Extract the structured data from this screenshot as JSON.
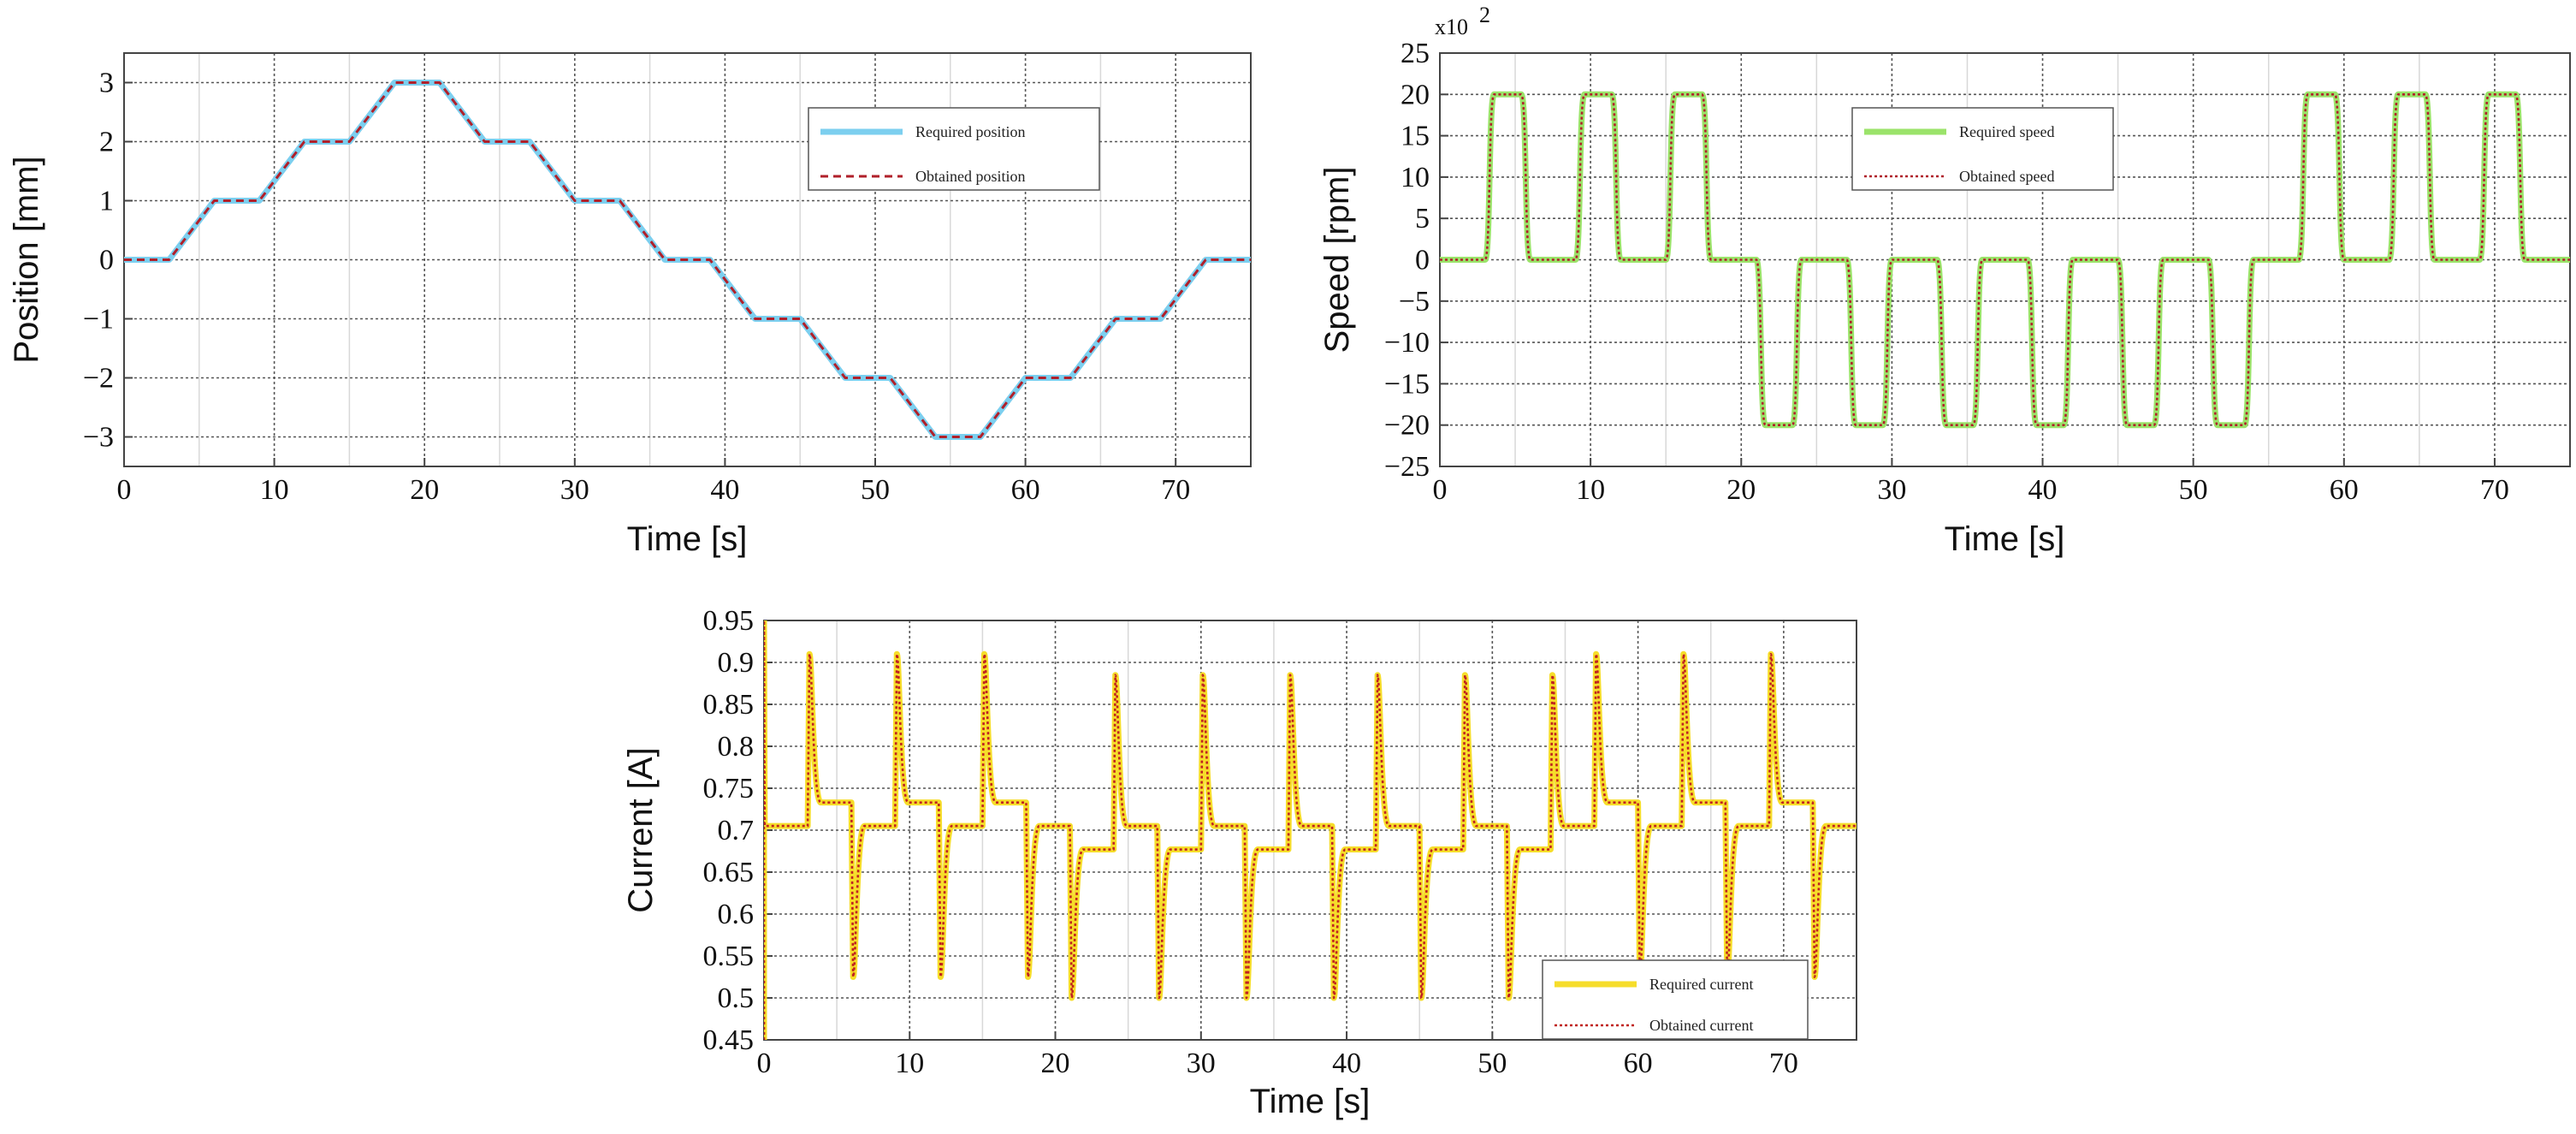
{
  "chart_data": [
    {
      "id": "position",
      "type": "line",
      "xlabel": "Time [s]",
      "ylabel": "Position [mm]",
      "xlim": [
        0,
        75
      ],
      "ylim": [
        -3.5,
        3.5
      ],
      "xticks": [
        0,
        10,
        20,
        30,
        40,
        50,
        60,
        70
      ],
      "yticks": [
        3,
        2,
        1,
        0,
        -1,
        -2,
        -3
      ],
      "ytick_labels": [
        "3",
        "2",
        "1",
        "0",
        "−1",
        "−2",
        "−3"
      ],
      "legend_position": "top-right",
      "series": [
        {
          "name": "Required position",
          "color": "#7ccfef",
          "style": "solid",
          "x": [
            0,
            3,
            6,
            9,
            12,
            15,
            18,
            21,
            24,
            27,
            30,
            33,
            36,
            39,
            42,
            45,
            48,
            51,
            54,
            57,
            60,
            63,
            66,
            69,
            72,
            75
          ],
          "y": [
            0,
            0,
            1,
            1,
            2,
            2,
            3,
            3,
            2,
            2,
            1,
            1,
            0,
            0,
            -1,
            -1,
            -2,
            -2,
            -3,
            -3,
            -2,
            -2,
            -1,
            -1,
            0,
            0
          ]
        },
        {
          "name": "Obtained position",
          "color": "#b0202a",
          "style": "dashed",
          "x": [
            0,
            3,
            6,
            9,
            12,
            15,
            18,
            21,
            24,
            27,
            30,
            33,
            36,
            39,
            42,
            45,
            48,
            51,
            54,
            57,
            60,
            63,
            66,
            69,
            72,
            75
          ],
          "y": [
            0,
            0,
            1,
            1,
            2,
            2,
            3,
            3,
            2,
            2,
            1,
            1,
            0,
            0,
            -1,
            -1,
            -2,
            -2,
            -3,
            -3,
            -2,
            -2,
            -1,
            -1,
            0,
            0
          ]
        }
      ]
    },
    {
      "id": "speed",
      "type": "line",
      "xlabel": "Time [s]",
      "ylabel": "Speed [rpm]",
      "y_multiplier": "x10",
      "y_multiplier_exp": "2",
      "xlim": [
        0,
        75
      ],
      "ylim": [
        -25,
        25
      ],
      "xticks": [
        0,
        10,
        20,
        30,
        40,
        50,
        60,
        70
      ],
      "yticks": [
        25,
        20,
        15,
        10,
        5,
        0,
        -5,
        -10,
        -15,
        -20,
        -25
      ],
      "ytick_labels": [
        "25",
        "20",
        "15",
        "10",
        "5",
        "0",
        "−5",
        "−10",
        "−15",
        "−20",
        "−25"
      ],
      "legend_position": "top-center",
      "pulses": [
        [
          3,
          20
        ],
        [
          9,
          20
        ],
        [
          15,
          20
        ],
        [
          21,
          -20
        ],
        [
          27,
          -20
        ],
        [
          33,
          -20
        ],
        [
          39,
          -20
        ],
        [
          45,
          -20
        ],
        [
          51,
          -20
        ],
        [
          57,
          20
        ],
        [
          63,
          20
        ],
        [
          69,
          20
        ]
      ],
      "pulse_length": 3,
      "series": [
        {
          "name": "Required speed",
          "color": "#9be36a",
          "style": "solid"
        },
        {
          "name": "Obtained speed",
          "color": "#b0202a",
          "style": "dotted"
        }
      ]
    },
    {
      "id": "current",
      "type": "line",
      "xlabel": "Time [s]",
      "ylabel": "Current [A]",
      "xlim": [
        0,
        75
      ],
      "ylim": [
        0.45,
        0.95
      ],
      "xticks": [
        0,
        10,
        20,
        30,
        40,
        50,
        60,
        70
      ],
      "yticks": [
        0.95,
        0.9,
        0.85,
        0.8,
        0.75,
        0.7,
        0.65,
        0.6,
        0.55,
        0.5,
        0.45
      ],
      "ytick_labels": [
        "0.95",
        "0.9",
        "0.85",
        "0.8",
        "0.75",
        "0.7",
        "0.65",
        "0.6",
        "0.55",
        "0.5",
        "0.45"
      ],
      "legend_position": "bottom-right",
      "start_spike": [
        0.45,
        0.95
      ],
      "events": [
        {
          "t": 3,
          "kind": "up",
          "peak": 0.91,
          "level": 0.733,
          "base": 0.705
        },
        {
          "t": 6,
          "kind": "down",
          "peak": 0.525,
          "level": 0.705,
          "base": 0.733
        },
        {
          "t": 9,
          "kind": "up",
          "peak": 0.91,
          "level": 0.733,
          "base": 0.705
        },
        {
          "t": 12,
          "kind": "down",
          "peak": 0.525,
          "level": 0.705,
          "base": 0.733
        },
        {
          "t": 15,
          "kind": "up",
          "peak": 0.91,
          "level": 0.733,
          "base": 0.705
        },
        {
          "t": 18,
          "kind": "down",
          "peak": 0.525,
          "level": 0.705,
          "base": 0.733
        },
        {
          "t": 21,
          "kind": "down",
          "peak": 0.5,
          "level": 0.677,
          "base": 0.705
        },
        {
          "t": 24,
          "kind": "up",
          "peak": 0.885,
          "level": 0.705,
          "base": 0.677
        },
        {
          "t": 27,
          "kind": "down",
          "peak": 0.5,
          "level": 0.677,
          "base": 0.705
        },
        {
          "t": 30,
          "kind": "up",
          "peak": 0.885,
          "level": 0.705,
          "base": 0.677
        },
        {
          "t": 33,
          "kind": "down",
          "peak": 0.5,
          "level": 0.677,
          "base": 0.705
        },
        {
          "t": 36,
          "kind": "up",
          "peak": 0.885,
          "level": 0.705,
          "base": 0.677
        },
        {
          "t": 39,
          "kind": "down",
          "peak": 0.5,
          "level": 0.677,
          "base": 0.705
        },
        {
          "t": 42,
          "kind": "up",
          "peak": 0.885,
          "level": 0.705,
          "base": 0.677
        },
        {
          "t": 45,
          "kind": "down",
          "peak": 0.5,
          "level": 0.677,
          "base": 0.705
        },
        {
          "t": 48,
          "kind": "up",
          "peak": 0.885,
          "level": 0.705,
          "base": 0.677
        },
        {
          "t": 51,
          "kind": "down",
          "peak": 0.5,
          "level": 0.677,
          "base": 0.705
        },
        {
          "t": 54,
          "kind": "up",
          "peak": 0.885,
          "level": 0.705,
          "base": 0.677
        },
        {
          "t": 57,
          "kind": "up",
          "peak": 0.91,
          "level": 0.733,
          "base": 0.705
        },
        {
          "t": 60,
          "kind": "down",
          "peak": 0.525,
          "level": 0.705,
          "base": 0.733
        },
        {
          "t": 63,
          "kind": "up",
          "peak": 0.91,
          "level": 0.733,
          "base": 0.705
        },
        {
          "t": 66,
          "kind": "down",
          "peak": 0.525,
          "level": 0.705,
          "base": 0.733
        },
        {
          "t": 69,
          "kind": "up",
          "peak": 0.91,
          "level": 0.733,
          "base": 0.705
        },
        {
          "t": 72,
          "kind": "down",
          "peak": 0.525,
          "level": 0.705,
          "base": 0.733
        }
      ],
      "series": [
        {
          "name": "Required current",
          "color": "#f6dd2a",
          "style": "solid"
        },
        {
          "name": "Obtained current",
          "color": "#c0221f",
          "style": "dotted"
        }
      ]
    }
  ]
}
